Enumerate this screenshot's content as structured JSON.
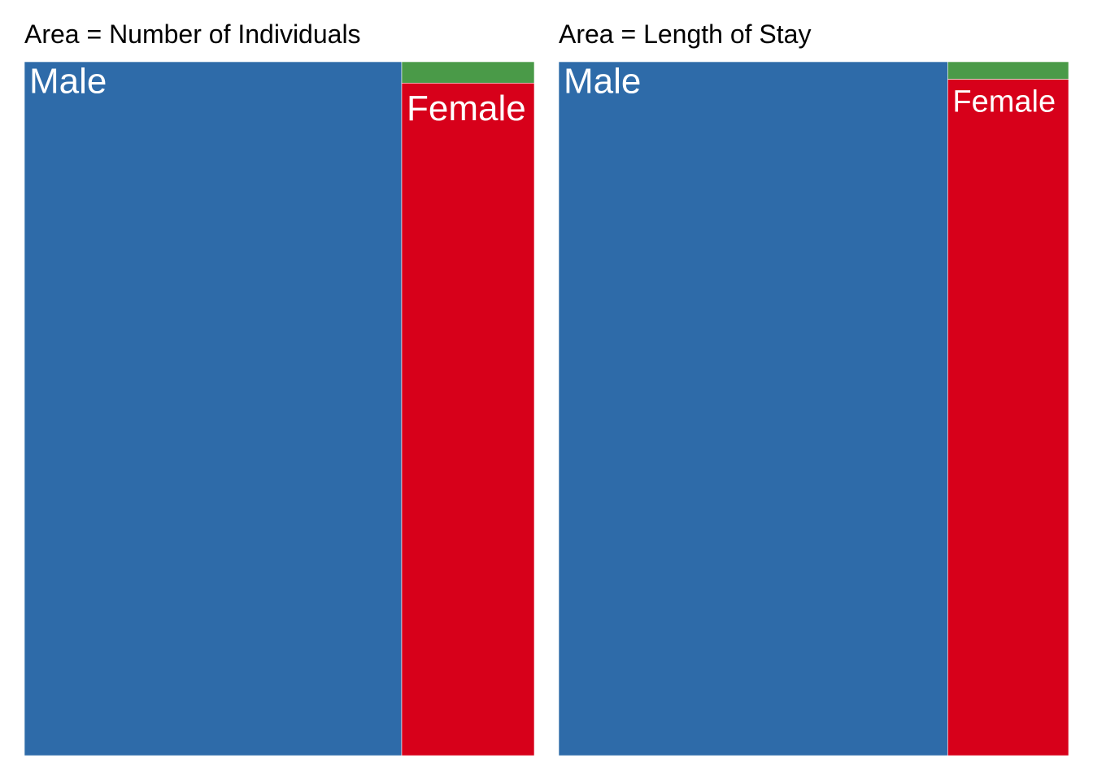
{
  "chart_data": [
    {
      "type": "treemap",
      "title": "Area = Number of Individuals",
      "tiles": [
        {
          "label": "Male",
          "value": 74.0,
          "color": "#2E6BA9"
        },
        {
          "label": "Female",
          "value": 25.2,
          "color": "#D7001A"
        },
        {
          "label": "",
          "value": 0.8,
          "color": "#4A9A48"
        }
      ]
    },
    {
      "type": "treemap",
      "title": "Area = Length of Stay",
      "tiles": [
        {
          "label": "Male",
          "value": 76.3,
          "color": "#2E6BA9"
        },
        {
          "label": "Female",
          "value": 23.1,
          "color": "#D7001A"
        },
        {
          "label": "",
          "value": 0.6,
          "color": "#4A9A48"
        }
      ]
    }
  ]
}
